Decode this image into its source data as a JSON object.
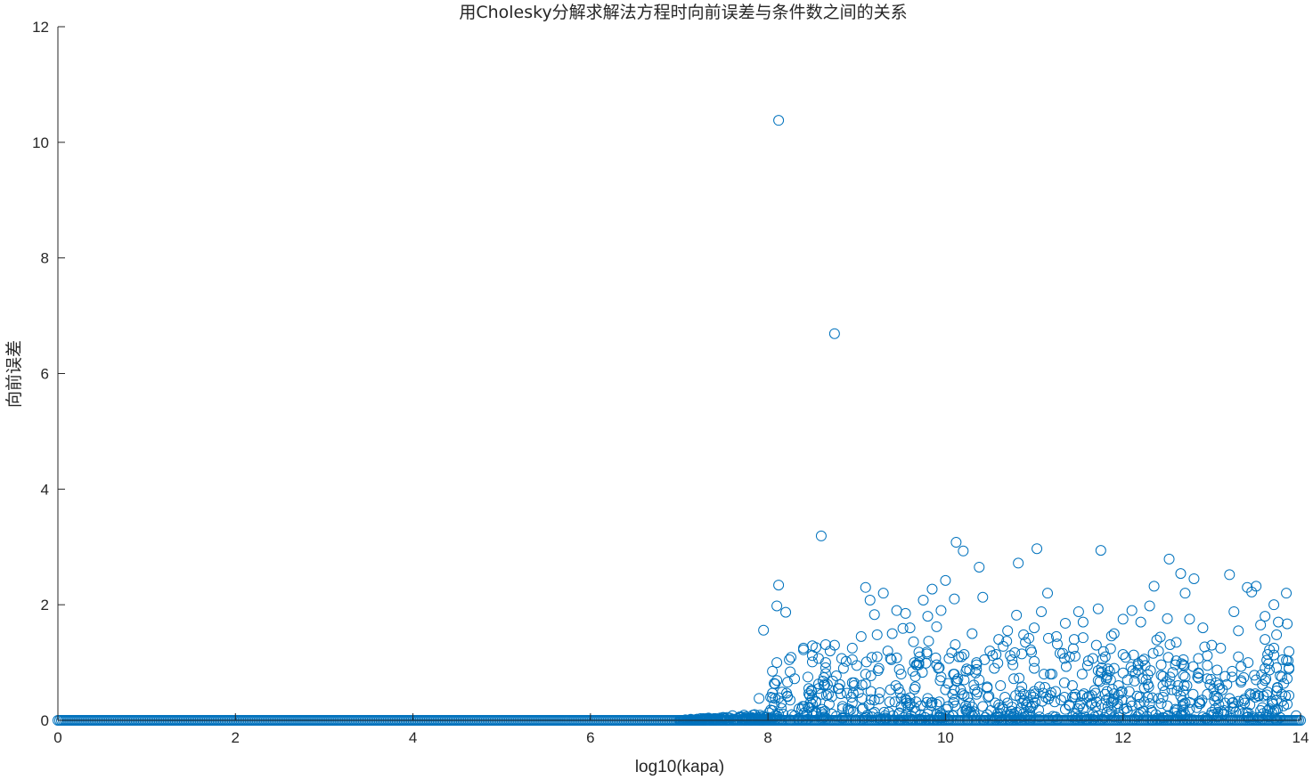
{
  "chart_data": {
    "type": "scatter",
    "title": "用Cholesky分解求解法方程时向前误差与条件数之间的关系",
    "xlabel": "log10(kapa)",
    "ylabel": "向前误差",
    "xlim": [
      0,
      14
    ],
    "ylim": [
      0,
      12
    ],
    "xticks": [
      "0",
      "2",
      "4",
      "6",
      "8",
      "10",
      "12",
      "14"
    ],
    "yticks": [
      "0",
      "2",
      "4",
      "6",
      "8",
      "10",
      "12"
    ],
    "grid": false,
    "marker": "circle-open",
    "color": "#0072BD",
    "series": [
      {
        "points": [
          [
            8.12,
            10.38
          ],
          [
            8.75,
            6.69
          ],
          [
            8.6,
            3.19
          ],
          [
            8.12,
            2.34
          ],
          [
            8.1,
            1.98
          ],
          [
            8.2,
            1.87
          ],
          [
            7.95,
            1.56
          ],
          [
            8.1,
            1.0
          ],
          [
            8.05,
            0.85
          ],
          [
            8.3,
            0.72
          ],
          [
            8.4,
            1.25
          ],
          [
            8.45,
            0.75
          ],
          [
            8.5,
            1.12
          ],
          [
            8.7,
            1.2
          ],
          [
            8.75,
            1.3
          ],
          [
            8.85,
            0.9
          ],
          [
            8.95,
            1.05
          ],
          [
            9.05,
            1.45
          ],
          [
            9.1,
            2.3
          ],
          [
            9.15,
            2.08
          ],
          [
            9.2,
            1.83
          ],
          [
            9.3,
            2.2
          ],
          [
            9.35,
            1.2
          ],
          [
            9.4,
            1.5
          ],
          [
            9.45,
            1.9
          ],
          [
            9.55,
            1.85
          ],
          [
            9.6,
            1.6
          ],
          [
            9.7,
            1.0
          ],
          [
            9.75,
            2.08
          ],
          [
            9.8,
            1.8
          ],
          [
            9.85,
            2.27
          ],
          [
            9.9,
            1.62
          ],
          [
            9.95,
            1.9
          ],
          [
            10.0,
            2.42
          ],
          [
            10.1,
            2.1
          ],
          [
            10.12,
            3.08
          ],
          [
            10.2,
            2.93
          ],
          [
            10.3,
            1.5
          ],
          [
            10.38,
            2.65
          ],
          [
            10.42,
            2.13
          ],
          [
            10.5,
            1.2
          ],
          [
            10.6,
            1.4
          ],
          [
            10.7,
            1.55
          ],
          [
            10.8,
            1.82
          ],
          [
            10.82,
            2.72
          ],
          [
            10.9,
            1.35
          ],
          [
            11.0,
            1.6
          ],
          [
            11.03,
            2.97
          ],
          [
            11.08,
            1.88
          ],
          [
            11.15,
            2.2
          ],
          [
            11.25,
            1.45
          ],
          [
            11.35,
            1.68
          ],
          [
            11.45,
            1.4
          ],
          [
            11.5,
            1.88
          ],
          [
            11.55,
            1.7
          ],
          [
            11.7,
            1.3
          ],
          [
            11.75,
            2.94
          ],
          [
            11.8,
            1.1
          ],
          [
            11.9,
            1.5
          ],
          [
            12.0,
            1.75
          ],
          [
            12.1,
            1.9
          ],
          [
            12.2,
            1.7
          ],
          [
            12.3,
            1.98
          ],
          [
            12.35,
            2.32
          ],
          [
            12.5,
            1.76
          ],
          [
            12.52,
            2.79
          ],
          [
            12.65,
            2.54
          ],
          [
            12.7,
            2.2
          ],
          [
            12.75,
            1.75
          ],
          [
            12.8,
            2.45
          ],
          [
            12.9,
            1.6
          ],
          [
            13.0,
            1.3
          ],
          [
            13.2,
            2.52
          ],
          [
            13.25,
            1.88
          ],
          [
            13.3,
            1.55
          ],
          [
            13.4,
            2.3
          ],
          [
            13.45,
            2.22
          ],
          [
            13.5,
            2.32
          ],
          [
            13.55,
            1.65
          ],
          [
            13.6,
            1.4
          ],
          [
            13.7,
            2.0
          ],
          [
            13.75,
            1.7
          ],
          [
            13.85,
            1.67
          ],
          [
            13.8,
            1.05
          ],
          [
            13.7,
            1.25
          ],
          [
            13.6,
            0.9
          ],
          [
            13.5,
            0.7
          ],
          [
            13.3,
            1.1
          ],
          [
            13.1,
            1.25
          ],
          [
            12.95,
            0.95
          ],
          [
            12.6,
            1.35
          ],
          [
            12.4,
            1.2
          ],
          [
            12.25,
            0.95
          ],
          [
            12.05,
            0.7
          ],
          [
            11.85,
            0.85
          ],
          [
            11.6,
            0.95
          ],
          [
            11.4,
            1.1
          ],
          [
            11.2,
            0.8
          ],
          [
            11.0,
            0.9
          ],
          [
            10.75,
            1.05
          ],
          [
            10.55,
            0.9
          ],
          [
            10.35,
            1.0
          ],
          [
            10.15,
            1.1
          ],
          [
            9.95,
            0.75
          ],
          [
            9.65,
            1.0
          ],
          [
            9.5,
            0.8
          ],
          [
            9.25,
            0.9
          ],
          [
            9.0,
            0.95
          ],
          [
            8.8,
            0.55
          ],
          [
            8.6,
            0.45
          ],
          [
            8.35,
            0.2
          ],
          [
            8.25,
            0.35
          ],
          [
            8.15,
            0.3
          ],
          [
            7.9,
            0.38
          ],
          [
            7.85,
            0.1
          ],
          [
            7.7,
            0.06
          ],
          [
            7.6,
            0.08
          ],
          [
            7.5,
            0.05
          ],
          [
            7.4,
            0.03
          ],
          [
            7.2,
            0.02
          ],
          [
            8.5,
            0.15
          ],
          [
            8.9,
            0.2
          ],
          [
            9.2,
            0.35
          ],
          [
            9.6,
            0.3
          ],
          [
            9.9,
            0.1
          ],
          [
            10.25,
            0.4
          ],
          [
            10.45,
            0.05
          ],
          [
            10.7,
            0.3
          ],
          [
            10.95,
            0.15
          ],
          [
            11.3,
            0.35
          ],
          [
            11.55,
            0.2
          ],
          [
            11.8,
            0.45
          ],
          [
            12.1,
            0.25
          ],
          [
            12.45,
            0.4
          ],
          [
            12.7,
            0.1
          ],
          [
            12.95,
            0.45
          ],
          [
            13.15,
            0.3
          ],
          [
            13.4,
            0.05
          ],
          [
            13.65,
            0.2
          ],
          [
            13.85,
            0.28
          ],
          [
            13.95,
            0.08
          ]
        ]
      }
    ]
  }
}
